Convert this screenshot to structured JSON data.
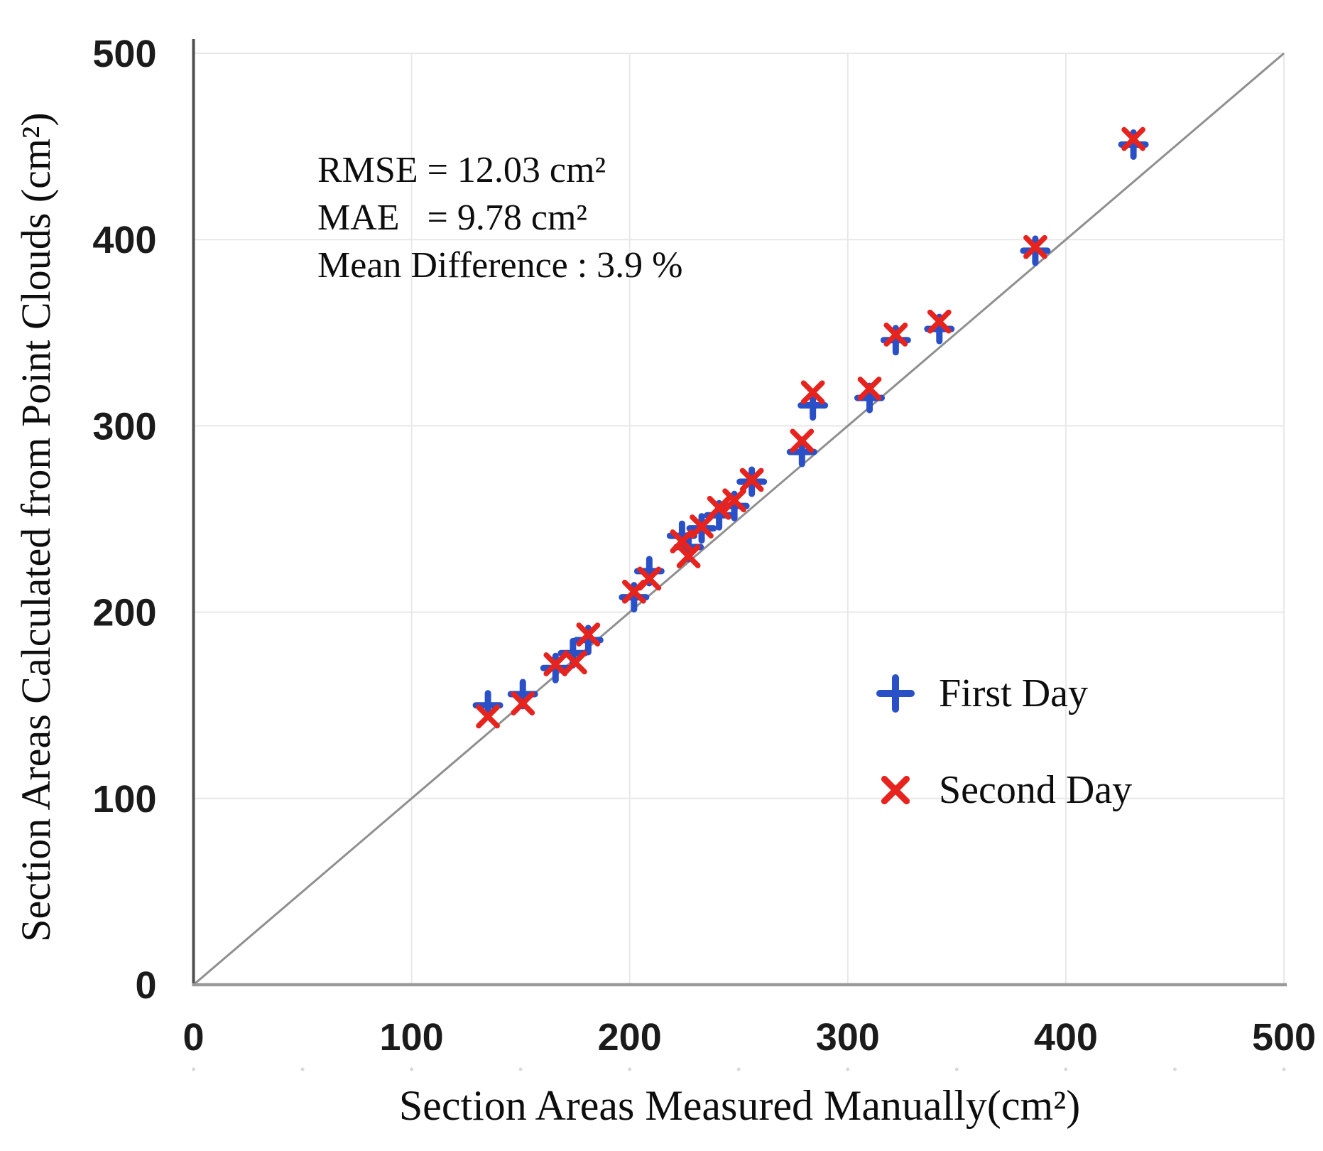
{
  "chart_data": {
    "type": "scatter",
    "title": "",
    "xlabel": "Section Areas Measured Manually(cm²)",
    "ylabel": "Section Areas Calculated from Point Clouds (cm²)",
    "xlim": [
      0,
      500
    ],
    "ylim": [
      0,
      500
    ],
    "xticks": [
      0,
      100,
      200,
      300,
      400,
      500
    ],
    "yticks": [
      0,
      100,
      200,
      300,
      400,
      500
    ],
    "minor_tick_step": 50,
    "grid": true,
    "grid_color": "#e8e8e8",
    "axis_color_left": "#4f4f4f",
    "axis_color_bottom": "#9a9a9a",
    "identity_line": {
      "from": [
        0,
        0
      ],
      "to": [
        500,
        500
      ],
      "color": "#8f8f8f"
    },
    "annotation": {
      "rmse": "RMSE = 12.03 cm²",
      "mae": "MAE   = 9.78 cm²",
      "mean_difference": "Mean Difference : 3.9 %"
    },
    "legend": {
      "position": "inside-lower-right"
    },
    "series": [
      {
        "name": "First Day",
        "marker": "plus",
        "color": "#2a50c8",
        "points": [
          [
            135,
            150
          ],
          [
            151,
            156
          ],
          [
            166,
            170
          ],
          [
            174,
            178
          ],
          [
            181,
            185
          ],
          [
            202,
            208
          ],
          [
            209,
            222
          ],
          [
            224,
            241
          ],
          [
            227,
            235
          ],
          [
            233,
            245
          ],
          [
            241,
            252
          ],
          [
            248,
            257
          ],
          [
            256,
            270
          ],
          [
            279,
            286
          ],
          [
            284,
            311
          ],
          [
            310,
            315
          ],
          [
            322,
            346
          ],
          [
            342,
            352
          ],
          [
            386,
            394
          ],
          [
            431,
            451
          ]
        ]
      },
      {
        "name": "Second Day",
        "marker": "x",
        "color": "#e7231e",
        "points": [
          [
            135,
            144
          ],
          [
            151,
            151
          ],
          [
            166,
            172
          ],
          [
            175,
            173
          ],
          [
            181,
            188
          ],
          [
            202,
            211
          ],
          [
            209,
            218
          ],
          [
            224,
            238
          ],
          [
            227,
            230
          ],
          [
            233,
            246
          ],
          [
            241,
            256
          ],
          [
            248,
            260
          ],
          [
            256,
            271
          ],
          [
            279,
            292
          ],
          [
            284,
            318
          ],
          [
            310,
            320
          ],
          [
            322,
            349
          ],
          [
            342,
            356
          ],
          [
            386,
            396
          ],
          [
            431,
            454
          ]
        ]
      }
    ]
  }
}
